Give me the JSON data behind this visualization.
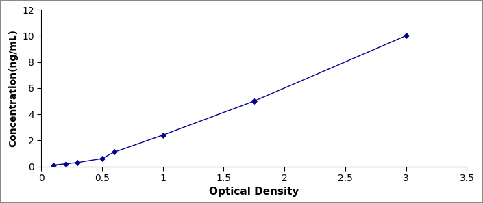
{
  "x": [
    0.1,
    0.2,
    0.3,
    0.5,
    0.6,
    1.0,
    1.75,
    3.0
  ],
  "y": [
    0.1,
    0.2,
    0.3,
    0.6,
    1.1,
    2.4,
    5.0,
    10.0
  ],
  "line_color": "#00008B",
  "marker": "D",
  "marker_size": 4,
  "marker_color": "#00008B",
  "line_style": "-",
  "line_width": 1.0,
  "xlabel": "Optical Density",
  "ylabel": "Concentration(ng/mL)",
  "xlim": [
    0,
    3.5
  ],
  "ylim": [
    0,
    12
  ],
  "xticks": [
    0,
    0.5,
    1.0,
    1.5,
    2.0,
    2.5,
    3.0,
    3.5
  ],
  "xticklabels": [
    "0",
    "0.5",
    "1",
    "1.5",
    "2",
    "2.5",
    "3",
    "3.5"
  ],
  "yticks": [
    0,
    2,
    4,
    6,
    8,
    10,
    12
  ],
  "yticklabels": [
    "0",
    "2",
    "4",
    "6",
    "8",
    "10",
    "12"
  ],
  "xlabel_fontsize": 11,
  "ylabel_fontsize": 10,
  "tick_fontsize": 10,
  "background_color": "#ffffff",
  "border_color": "#000000",
  "fig_border_color": "#aaaaaa"
}
